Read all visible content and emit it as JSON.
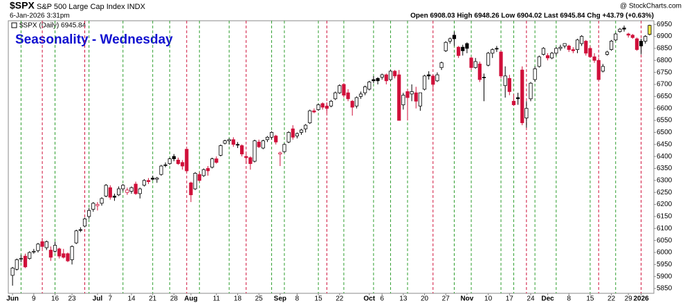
{
  "header": {
    "symbol": "$SPX",
    "name": "S&P 500 Large Cap Index INDX",
    "date": "6-Jan-2026 3:31pm",
    "source": "@ StockCharts.com",
    "quote": "Open 6908.03  High 6948.26  Low 6904.02  Last 6945.84  Chg +43.79 (+0.63%)"
  },
  "chart_data": {
    "type": "candlestick",
    "title": "Seasonality - Wednesday",
    "legend": "$SPX (Daily) 6945.84",
    "up_color": "#000000",
    "down_color": "#d0103a",
    "highlight_last_color": "#f5e642",
    "up_line_color": "#2e9e2e",
    "down_line_color": "#d0103a",
    "ylim": [
      5830,
      6965
    ],
    "yticks": [
      5850,
      5900,
      5950,
      6000,
      6050,
      6100,
      6150,
      6200,
      6250,
      6300,
      6350,
      6400,
      6450,
      6500,
      6550,
      6600,
      6650,
      6700,
      6750,
      6800,
      6850,
      6900,
      6950
    ],
    "xlim": [
      -1,
      151
    ],
    "xticks": [
      {
        "value": 0,
        "label": "Jun"
      },
      {
        "value": 5,
        "label": "9"
      },
      {
        "value": 10,
        "label": "16"
      },
      {
        "value": 14,
        "label": "23"
      },
      {
        "value": 20,
        "label": "Jul"
      },
      {
        "value": 23,
        "label": "7"
      },
      {
        "value": 28,
        "label": "14"
      },
      {
        "value": 33,
        "label": "21"
      },
      {
        "value": 38,
        "label": "28"
      },
      {
        "value": 42,
        "label": "Aug"
      },
      {
        "value": 48,
        "label": "11"
      },
      {
        "value": 53,
        "label": "18"
      },
      {
        "value": 58,
        "label": "25"
      },
      {
        "value": 63,
        "label": "Sep"
      },
      {
        "value": 67,
        "label": "8"
      },
      {
        "value": 72,
        "label": "15"
      },
      {
        "value": 77,
        "label": "22"
      },
      {
        "value": 84,
        "label": "Oct"
      },
      {
        "value": 87,
        "label": "6"
      },
      {
        "value": 92,
        "label": "13"
      },
      {
        "value": 97,
        "label": "20"
      },
      {
        "value": 102,
        "label": "27"
      },
      {
        "value": 107,
        "label": "Nov"
      },
      {
        "value": 112,
        "label": "10"
      },
      {
        "value": 117,
        "label": "17"
      },
      {
        "value": 122,
        "label": "24"
      },
      {
        "value": 126,
        "label": "Dec"
      },
      {
        "value": 131,
        "label": "8"
      },
      {
        "value": 136,
        "label": "15"
      },
      {
        "value": 141,
        "label": "22"
      },
      {
        "value": 145,
        "label": "29"
      },
      {
        "value": 148,
        "label": "2026"
      }
    ],
    "up_days": [
      2,
      10,
      18,
      26,
      33,
      37,
      44,
      51,
      61,
      64,
      72,
      78,
      85,
      89,
      93,
      104,
      108,
      115,
      118,
      123,
      128,
      136,
      142
    ],
    "down_days": [
      7,
      17,
      41,
      55,
      74,
      99,
      121,
      138,
      148
    ],
    "candles": [
      [
        5905,
        5940,
        5862,
        5935
      ],
      [
        5930,
        5975,
        5925,
        5970
      ],
      [
        5972,
        5990,
        5960,
        5975
      ],
      [
        5985,
        5995,
        5935,
        5940
      ],
      [
        5975,
        6005,
        5970,
        6000
      ],
      [
        6002,
        6015,
        5995,
        6005
      ],
      [
        6008,
        6040,
        6000,
        6035
      ],
      [
        6045,
        6060,
        6015,
        6025
      ],
      [
        6020,
        6050,
        6010,
        6045
      ],
      [
        6010,
        6025,
        5965,
        5980
      ],
      [
        6005,
        6045,
        6000,
        6030
      ],
      [
        6015,
        6020,
        5975,
        5985
      ],
      [
        5995,
        6015,
        5975,
        5980
      ],
      [
        5995,
        6000,
        5960,
        5965
      ],
      [
        5970,
        6030,
        5950,
        6025
      ],
      [
        6040,
        6095,
        6035,
        6090
      ],
      [
        6095,
        6105,
        6085,
        6095
      ],
      [
        6110,
        6145,
        6105,
        6140
      ],
      [
        6150,
        6185,
        6140,
        6175
      ],
      [
        6180,
        6210,
        6170,
        6205
      ],
      [
        6195,
        6210,
        6175,
        6200
      ],
      [
        6205,
        6230,
        6195,
        6225
      ],
      [
        6235,
        6285,
        6230,
        6280
      ],
      [
        6270,
        6280,
        6220,
        6230
      ],
      [
        6235,
        6245,
        6215,
        6230
      ],
      [
        6240,
        6275,
        6235,
        6265
      ],
      [
        6265,
        6285,
        6255,
        6280
      ],
      [
        6250,
        6270,
        6240,
        6260
      ],
      [
        6255,
        6275,
        6245,
        6270
      ],
      [
        6285,
        6295,
        6240,
        6245
      ],
      [
        6245,
        6270,
        6225,
        6265
      ],
      [
        6280,
        6305,
        6275,
        6300
      ],
      [
        6300,
        6310,
        6285,
        6295
      ],
      [
        6310,
        6320,
        6300,
        6305
      ],
      [
        6305,
        6315,
        6290,
        6310
      ],
      [
        6325,
        6365,
        6320,
        6360
      ],
      [
        6365,
        6375,
        6355,
        6365
      ],
      [
        6370,
        6395,
        6365,
        6390
      ],
      [
        6400,
        6410,
        6380,
        6390
      ],
      [
        6385,
        6395,
        6365,
        6370
      ],
      [
        6375,
        6385,
        6345,
        6360
      ],
      [
        6430,
        6430,
        6335,
        6340
      ],
      [
        6290,
        6295,
        6210,
        6240
      ],
      [
        6265,
        6335,
        6260,
        6330
      ],
      [
        6325,
        6335,
        6295,
        6300
      ],
      [
        6320,
        6350,
        6315,
        6345
      ],
      [
        6350,
        6360,
        6320,
        6340
      ],
      [
        6355,
        6395,
        6350,
        6390
      ],
      [
        6390,
        6400,
        6370,
        6375
      ],
      [
        6405,
        6450,
        6400,
        6445
      ],
      [
        6455,
        6470,
        6450,
        6465
      ],
      [
        6465,
        6475,
        6450,
        6470
      ],
      [
        6470,
        6480,
        6440,
        6450
      ],
      [
        6450,
        6460,
        6435,
        6450
      ],
      [
        6445,
        6450,
        6400,
        6410
      ],
      [
        6400,
        6410,
        6370,
        6395
      ],
      [
        6395,
        6400,
        6345,
        6370
      ],
      [
        6380,
        6470,
        6375,
        6465
      ],
      [
        6460,
        6470,
        6435,
        6440
      ],
      [
        6435,
        6470,
        6430,
        6465
      ],
      [
        6470,
        6485,
        6460,
        6480
      ],
      [
        6480,
        6505,
        6470,
        6500
      ],
      [
        6485,
        6490,
        6450,
        6460
      ],
      [
        6410,
        6420,
        6360,
        6415
      ],
      [
        6420,
        6455,
        6415,
        6450
      ],
      [
        6460,
        6505,
        6455,
        6500
      ],
      [
        6515,
        6530,
        6470,
        6480
      ],
      [
        6485,
        6500,
        6475,
        6495
      ],
      [
        6500,
        6515,
        6490,
        6510
      ],
      [
        6515,
        6535,
        6500,
        6530
      ],
      [
        6540,
        6595,
        6535,
        6590
      ],
      [
        6590,
        6600,
        6580,
        6585
      ],
      [
        6595,
        6620,
        6590,
        6615
      ],
      [
        6620,
        6625,
        6595,
        6605
      ],
      [
        6610,
        6625,
        6580,
        6600
      ],
      [
        6610,
        6635,
        6605,
        6630
      ],
      [
        6640,
        6670,
        6635,
        6665
      ],
      [
        6665,
        6700,
        6660,
        6695
      ],
      [
        6700,
        6705,
        6645,
        6655
      ],
      [
        6665,
        6680,
        6630,
        6640
      ],
      [
        6630,
        6635,
        6570,
        6605
      ],
      [
        6610,
        6650,
        6600,
        6645
      ],
      [
        6650,
        6670,
        6640,
        6660
      ],
      [
        6665,
        6695,
        6655,
        6690
      ],
      [
        6680,
        6715,
        6675,
        6710
      ],
      [
        6720,
        6735,
        6705,
        6715
      ],
      [
        6725,
        6730,
        6700,
        6715
      ],
      [
        6730,
        6745,
        6720,
        6740
      ],
      [
        6740,
        6745,
        6700,
        6715
      ],
      [
        6720,
        6760,
        6715,
        6755
      ],
      [
        6755,
        6760,
        6725,
        6735
      ],
      [
        6740,
        6760,
        6550,
        6550
      ],
      [
        6615,
        6665,
        6595,
        6655
      ],
      [
        6670,
        6680,
        6550,
        6645
      ],
      [
        6660,
        6700,
        6630,
        6670
      ],
      [
        6665,
        6690,
        6600,
        6630
      ],
      [
        6610,
        6665,
        6590,
        6665
      ],
      [
        6680,
        6740,
        6675,
        6735
      ],
      [
        6740,
        6755,
        6720,
        6735
      ],
      [
        6735,
        6740,
        6670,
        6700
      ],
      [
        6715,
        6750,
        6710,
        6740
      ],
      [
        6770,
        6795,
        6760,
        6790
      ],
      [
        6840,
        6880,
        6835,
        6875
      ],
      [
        6880,
        6895,
        6870,
        6890
      ],
      [
        6905,
        6920,
        6860,
        6890
      ],
      [
        6855,
        6860,
        6810,
        6820
      ],
      [
        6855,
        6865,
        6820,
        6840
      ],
      [
        6870,
        6875,
        6830,
        6850
      ],
      [
        6810,
        6815,
        6760,
        6770
      ],
      [
        6770,
        6810,
        6765,
        6795
      ],
      [
        6785,
        6795,
        6710,
        6720
      ],
      [
        6730,
        6745,
        6630,
        6730
      ],
      [
        6780,
        6835,
        6775,
        6830
      ],
      [
        6830,
        6850,
        6810,
        6845
      ],
      [
        6850,
        6860,
        6835,
        6850
      ],
      [
        6835,
        6840,
        6725,
        6735
      ],
      [
        6695,
        6775,
        6645,
        6735
      ],
      [
        6725,
        6740,
        6655,
        6670
      ],
      [
        6630,
        6660,
        6610,
        6615
      ],
      [
        6645,
        6665,
        6615,
        6640
      ],
      [
        6760,
        6775,
        6530,
        6540
      ],
      [
        6560,
        6630,
        6520,
        6600
      ],
      [
        6640,
        6710,
        6630,
        6705
      ],
      [
        6720,
        6775,
        6710,
        6765
      ],
      [
        6775,
        6820,
        6770,
        6815
      ],
      [
        6825,
        6855,
        6820,
        6850
      ],
      [
        6820,
        6830,
        6800,
        6810
      ],
      [
        6810,
        6835,
        6805,
        6830
      ],
      [
        6830,
        6855,
        6820,
        6850
      ],
      [
        6850,
        6865,
        6840,
        6855
      ],
      [
        6860,
        6870,
        6850,
        6870
      ],
      [
        6860,
        6865,
        6835,
        6845
      ],
      [
        6845,
        6855,
        6830,
        6840
      ],
      [
        6845,
        6890,
        6830,
        6885
      ],
      [
        6870,
        6905,
        6860,
        6900
      ],
      [
        6880,
        6885,
        6820,
        6830
      ],
      [
        6850,
        6860,
        6810,
        6815
      ],
      [
        6815,
        6830,
        6790,
        6800
      ],
      [
        6800,
        6810,
        6720,
        6720
      ],
      [
        6755,
        6785,
        6750,
        6775
      ],
      [
        6825,
        6840,
        6820,
        6835
      ],
      [
        6845,
        6885,
        6840,
        6880
      ],
      [
        6885,
        6915,
        6880,
        6910
      ],
      [
        6920,
        6935,
        6915,
        6930
      ],
      [
        6935,
        6945,
        6920,
        6930
      ],
      [
        6910,
        6915,
        6895,
        6905
      ],
      [
        6905,
        6910,
        6890,
        6895
      ],
      [
        6890,
        6895,
        6840,
        6845
      ],
      [
        6880,
        6890,
        6825,
        6860
      ],
      [
        6880,
        6905,
        6870,
        6900
      ],
      [
        6908.03,
        6948.26,
        6904.02,
        6945.84
      ]
    ]
  }
}
